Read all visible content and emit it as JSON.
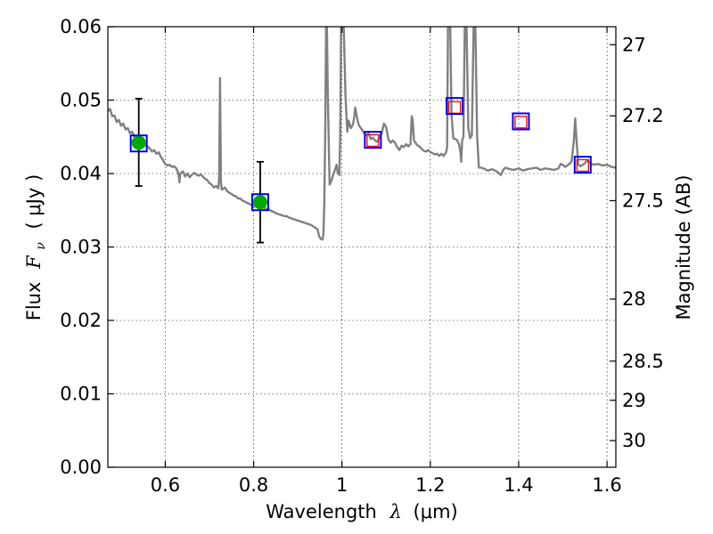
{
  "chart_data": {
    "type": "line",
    "title": "",
    "xlabel_prefix": "Wavelength",
    "xlabel_var": "λ",
    "xlabel_unit": "(μm)",
    "ylabel_prefix": "Flux",
    "ylabel_var": "F",
    "ylabel_sub": "ν",
    "ylabel_unit": "( μJy )",
    "y2label": "Magnitude (AB)",
    "xlim": [
      0.47,
      1.62
    ],
    "ylim": [
      0.0,
      0.06
    ],
    "grid": true,
    "x_ticks": [
      0.6,
      0.8,
      1.0,
      1.2,
      1.4,
      1.6
    ],
    "x_tick_labels": [
      "0.6",
      "0.8",
      "1",
      "1.2",
      "1.4",
      "1.6"
    ],
    "y_ticks": [
      0.0,
      0.01,
      0.02,
      0.03,
      0.04,
      0.05,
      0.06
    ],
    "y_tick_labels": [
      "0.00",
      "0.01",
      "0.02",
      "0.03",
      "0.04",
      "0.05",
      "0.06"
    ],
    "y2_ticks": [
      27.0,
      27.2,
      27.5,
      28.0,
      28.5,
      29.0,
      30.0
    ],
    "y2_tick_labels": [
      "27",
      "27.2",
      "27.5",
      "28",
      "28.5",
      "29",
      "30"
    ],
    "template": {
      "name": "model spectrum",
      "color": "#808080",
      "points": [
        [
          0.47,
          0.0485
        ],
        [
          0.475,
          0.0488
        ],
        [
          0.48,
          0.0478
        ],
        [
          0.485,
          0.0479
        ],
        [
          0.49,
          0.047
        ],
        [
          0.495,
          0.0473
        ],
        [
          0.5,
          0.0465
        ],
        [
          0.505,
          0.0468
        ],
        [
          0.51,
          0.046
        ],
        [
          0.515,
          0.0462
        ],
        [
          0.52,
          0.0455
        ],
        [
          0.525,
          0.0457
        ],
        [
          0.53,
          0.045
        ],
        [
          0.535,
          0.0449
        ],
        [
          0.54,
          0.0445
        ],
        [
          0.545,
          0.0443
        ],
        [
          0.55,
          0.0441
        ],
        [
          0.555,
          0.0438
        ],
        [
          0.56,
          0.0437
        ],
        [
          0.565,
          0.0434
        ],
        [
          0.57,
          0.043
        ],
        [
          0.575,
          0.0432
        ],
        [
          0.58,
          0.0427
        ],
        [
          0.585,
          0.0429
        ],
        [
          0.59,
          0.0423
        ],
        [
          0.595,
          0.0418
        ],
        [
          0.6,
          0.0413
        ],
        [
          0.605,
          0.0411
        ],
        [
          0.61,
          0.0412
        ],
        [
          0.615,
          0.0409
        ],
        [
          0.62,
          0.041
        ],
        [
          0.625,
          0.0407
        ],
        [
          0.63,
          0.04
        ],
        [
          0.632,
          0.0388
        ],
        [
          0.634,
          0.04
        ],
        [
          0.64,
          0.0403
        ],
        [
          0.645,
          0.0396
        ],
        [
          0.65,
          0.04
        ],
        [
          0.655,
          0.0395
        ],
        [
          0.66,
          0.0398
        ],
        [
          0.665,
          0.0401
        ],
        [
          0.67,
          0.0399
        ],
        [
          0.675,
          0.0397
        ],
        [
          0.68,
          0.0399
        ],
        [
          0.685,
          0.0396
        ],
        [
          0.69,
          0.0393
        ],
        [
          0.695,
          0.0391
        ],
        [
          0.7,
          0.0387
        ],
        [
          0.705,
          0.0385
        ],
        [
          0.71,
          0.0381
        ],
        [
          0.715,
          0.0383
        ],
        [
          0.72,
          0.038
        ],
        [
          0.722,
          0.0395
        ],
        [
          0.724,
          0.053
        ],
        [
          0.726,
          0.0388
        ],
        [
          0.728,
          0.0378
        ],
        [
          0.735,
          0.0381
        ],
        [
          0.74,
          0.0376
        ],
        [
          0.745,
          0.0374
        ],
        [
          0.75,
          0.0372
        ],
        [
          0.755,
          0.037
        ],
        [
          0.76,
          0.0369
        ],
        [
          0.765,
          0.0366
        ],
        [
          0.77,
          0.0366
        ],
        [
          0.775,
          0.0363
        ],
        [
          0.78,
          0.0362
        ],
        [
          0.785,
          0.036
        ],
        [
          0.79,
          0.0359
        ],
        [
          0.795,
          0.0357
        ],
        [
          0.8,
          0.0356
        ],
        [
          0.805,
          0.0355
        ],
        [
          0.81,
          0.0354
        ],
        [
          0.815,
          0.0354
        ],
        [
          0.82,
          0.0354
        ],
        [
          0.825,
          0.0353
        ],
        [
          0.83,
          0.0352
        ],
        [
          0.835,
          0.0351
        ],
        [
          0.84,
          0.0349
        ],
        [
          0.845,
          0.0348
        ],
        [
          0.85,
          0.0346
        ],
        [
          0.855,
          0.0345
        ],
        [
          0.86,
          0.0344
        ],
        [
          0.865,
          0.0343
        ],
        [
          0.87,
          0.0342
        ],
        [
          0.875,
          0.0342
        ],
        [
          0.88,
          0.034
        ],
        [
          0.885,
          0.0339
        ],
        [
          0.89,
          0.0338
        ],
        [
          0.895,
          0.0337
        ],
        [
          0.9,
          0.0336
        ],
        [
          0.905,
          0.0335
        ],
        [
          0.91,
          0.0334
        ],
        [
          0.915,
          0.0333
        ],
        [
          0.92,
          0.0332
        ],
        [
          0.925,
          0.0331
        ],
        [
          0.93,
          0.033
        ],
        [
          0.935,
          0.0328
        ],
        [
          0.94,
          0.0326
        ],
        [
          0.945,
          0.0324
        ],
        [
          0.948,
          0.0315
        ],
        [
          0.952,
          0.0311
        ],
        [
          0.956,
          0.031
        ],
        [
          0.958,
          0.0318
        ],
        [
          0.96,
          0.036
        ],
        [
          0.962,
          0.045
        ],
        [
          0.964,
          0.06
        ],
        [
          0.966,
          0.06
        ],
        [
          0.968,
          0.0505
        ],
        [
          0.972,
          0.0385
        ],
        [
          0.976,
          0.039
        ],
        [
          0.98,
          0.0398
        ],
        [
          0.984,
          0.0405
        ],
        [
          0.988,
          0.0412
        ],
        [
          0.99,
          0.0402
        ],
        [
          0.994,
          0.0398
        ],
        [
          0.996,
          0.045
        ],
        [
          0.998,
          0.06
        ],
        [
          1.004,
          0.06
        ],
        [
          1.008,
          0.0505
        ],
        [
          1.012,
          0.0457
        ],
        [
          1.015,
          0.0472
        ],
        [
          1.02,
          0.0462
        ],
        [
          1.025,
          0.0467
        ],
        [
          1.028,
          0.0478
        ],
        [
          1.03,
          0.049
        ],
        [
          1.034,
          0.0476
        ],
        [
          1.038,
          0.0466
        ],
        [
          1.045,
          0.046
        ],
        [
          1.05,
          0.0455
        ],
        [
          1.055,
          0.0452
        ],
        [
          1.06,
          0.0455
        ],
        [
          1.065,
          0.0447
        ],
        [
          1.07,
          0.0449
        ],
        [
          1.075,
          0.0445
        ],
        [
          1.08,
          0.0443
        ],
        [
          1.085,
          0.045
        ],
        [
          1.09,
          0.0455
        ],
        [
          1.095,
          0.0468
        ],
        [
          1.1,
          0.0463
        ],
        [
          1.105,
          0.0447
        ],
        [
          1.11,
          0.0442
        ],
        [
          1.115,
          0.0445
        ],
        [
          1.12,
          0.0442
        ],
        [
          1.125,
          0.0436
        ],
        [
          1.13,
          0.0432
        ],
        [
          1.135,
          0.0438
        ],
        [
          1.14,
          0.0436
        ],
        [
          1.145,
          0.044
        ],
        [
          1.15,
          0.0437
        ],
        [
          1.155,
          0.044
        ],
        [
          1.158,
          0.0478
        ],
        [
          1.16,
          0.0472
        ],
        [
          1.163,
          0.0445
        ],
        [
          1.17,
          0.0439
        ],
        [
          1.175,
          0.0437
        ],
        [
          1.18,
          0.0434
        ],
        [
          1.185,
          0.0431
        ],
        [
          1.19,
          0.043
        ],
        [
          1.195,
          0.0432
        ],
        [
          1.2,
          0.0429
        ],
        [
          1.205,
          0.0428
        ],
        [
          1.21,
          0.0426
        ],
        [
          1.215,
          0.0427
        ],
        [
          1.22,
          0.0424
        ],
        [
          1.225,
          0.0427
        ],
        [
          1.23,
          0.0424
        ],
        [
          1.235,
          0.0428
        ],
        [
          1.238,
          0.0435
        ],
        [
          1.24,
          0.06
        ],
        [
          1.245,
          0.06
        ],
        [
          1.248,
          0.048
        ],
        [
          1.252,
          0.0448
        ],
        [
          1.256,
          0.0447
        ],
        [
          1.26,
          0.0446
        ],
        [
          1.265,
          0.044
        ],
        [
          1.268,
          0.043
        ],
        [
          1.27,
          0.0416
        ],
        [
          1.272,
          0.0445
        ],
        [
          1.275,
          0.045
        ],
        [
          1.278,
          0.06
        ],
        [
          1.282,
          0.06
        ],
        [
          1.286,
          0.0462
        ],
        [
          1.29,
          0.0448
        ],
        [
          1.294,
          0.0452
        ],
        [
          1.298,
          0.06
        ],
        [
          1.302,
          0.06
        ],
        [
          1.306,
          0.045
        ],
        [
          1.31,
          0.0408
        ],
        [
          1.315,
          0.0408
        ],
        [
          1.32,
          0.0407
        ],
        [
          1.33,
          0.0404
        ],
        [
          1.34,
          0.0406
        ],
        [
          1.35,
          0.0403
        ],
        [
          1.36,
          0.0398
        ],
        [
          1.365,
          0.0405
        ],
        [
          1.37,
          0.0408
        ],
        [
          1.38,
          0.0406
        ],
        [
          1.39,
          0.0405
        ],
        [
          1.4,
          0.0407
        ],
        [
          1.41,
          0.0404
        ],
        [
          1.42,
          0.0406
        ],
        [
          1.43,
          0.0407
        ],
        [
          1.44,
          0.0408
        ],
        [
          1.45,
          0.0405
        ],
        [
          1.46,
          0.0407
        ],
        [
          1.47,
          0.0406
        ],
        [
          1.48,
          0.0405
        ],
        [
          1.49,
          0.0407
        ],
        [
          1.495,
          0.0413
        ],
        [
          1.5,
          0.0412
        ],
        [
          1.505,
          0.0409
        ],
        [
          1.51,
          0.0411
        ],
        [
          1.515,
          0.0413
        ],
        [
          1.52,
          0.0417
        ],
        [
          1.525,
          0.0445
        ],
        [
          1.528,
          0.0475
        ],
        [
          1.531,
          0.0445
        ],
        [
          1.535,
          0.0412
        ],
        [
          1.54,
          0.041
        ],
        [
          1.545,
          0.0412
        ],
        [
          1.55,
          0.0414
        ],
        [
          1.555,
          0.0418
        ],
        [
          1.56,
          0.0415
        ],
        [
          1.57,
          0.0412
        ],
        [
          1.58,
          0.0413
        ],
        [
          1.59,
          0.0411
        ],
        [
          1.6,
          0.0412
        ],
        [
          1.61,
          0.0409
        ],
        [
          1.62,
          0.0408
        ]
      ]
    },
    "observed": {
      "name": "detections",
      "color": "#00aa00",
      "points": [
        {
          "x": 0.54,
          "y": 0.0442,
          "err_lo": 0.0383,
          "err_hi": 0.0502
        },
        {
          "x": 0.815,
          "y": 0.0361,
          "err_lo": 0.0306,
          "err_hi": 0.0416
        }
      ]
    },
    "model_bands": {
      "name": "model band flux",
      "color": "#0000ff",
      "points": [
        [
          0.54,
          0.0441
        ],
        [
          0.815,
          0.0361
        ],
        [
          1.07,
          0.0446
        ],
        [
          1.255,
          0.0492
        ],
        [
          1.405,
          0.0471
        ],
        [
          1.545,
          0.0412
        ]
      ]
    },
    "predicted": {
      "name": "predicted",
      "color": "#ff0000",
      "points": [
        [
          1.07,
          0.0445
        ],
        [
          1.255,
          0.049
        ],
        [
          1.405,
          0.047
        ],
        [
          1.545,
          0.0411
        ]
      ]
    }
  }
}
